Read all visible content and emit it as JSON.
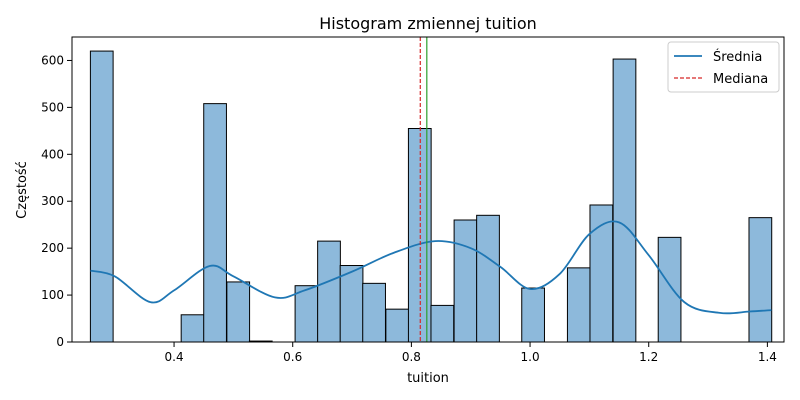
{
  "chart_data": {
    "type": "bar",
    "title": "Histogram zmiennej tuition",
    "xlabel": "tuition",
    "ylabel": "Częstość",
    "xlim": [
      0.228,
      1.428
    ],
    "ylim": [
      0,
      650
    ],
    "x_ticks": [
      0.4,
      0.6,
      0.8,
      1.0,
      1.2,
      1.4
    ],
    "x_tick_labels": [
      "0.4",
      "0.6",
      "0.8",
      "1.0",
      "1.2",
      "1.4"
    ],
    "y_ticks": [
      0,
      100,
      200,
      300,
      400,
      500,
      600
    ],
    "y_tick_labels": [
      "0",
      "100",
      "200",
      "300",
      "400",
      "500",
      "600"
    ],
    "bins": {
      "left_edges": [
        0.259,
        0.297,
        0.336,
        0.374,
        0.412,
        0.45,
        0.489,
        0.527,
        0.565,
        0.604,
        0.642,
        0.68,
        0.718,
        0.757,
        0.795,
        0.833,
        0.872,
        0.91,
        0.948,
        0.986,
        1.025,
        1.063,
        1.101,
        1.14,
        1.178,
        1.216,
        1.255,
        1.293,
        1.331,
        1.369
      ],
      "width": 0.0383,
      "counts": [
        620,
        0,
        0,
        0,
        58,
        508,
        128,
        2,
        0,
        120,
        215,
        163,
        125,
        70,
        455,
        78,
        260,
        270,
        0,
        115,
        0,
        158,
        292,
        603,
        0,
        223,
        0,
        0,
        0,
        265
      ]
    },
    "kde": {
      "name": "Średnia",
      "x": [
        0.259,
        0.3,
        0.36,
        0.4,
        0.46,
        0.5,
        0.57,
        0.62,
        0.7,
        0.77,
        0.84,
        0.9,
        0.95,
        1.0,
        1.05,
        1.1,
        1.15,
        1.2,
        1.26,
        1.32,
        1.37,
        1.407
      ],
      "y": [
        152,
        140,
        85,
        110,
        162,
        140,
        95,
        110,
        150,
        190,
        215,
        200,
        160,
        113,
        145,
        230,
        255,
        185,
        85,
        62,
        65,
        68
      ]
    },
    "mean_line": {
      "x": 0.826
    },
    "median_line": {
      "x": 0.815
    },
    "legend": {
      "position": "top-right",
      "entries": [
        "Średnia",
        "Mediana"
      ]
    },
    "colors": {
      "bar_fill": "#8db9db",
      "bar_edge": "#000000",
      "kde": "#1f77b4",
      "median": "#d62728",
      "mean": "#2ca02c"
    },
    "grid": false
  }
}
